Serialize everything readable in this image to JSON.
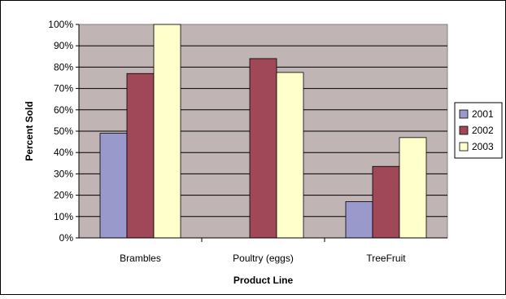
{
  "chart_data": {
    "type": "bar",
    "title": "",
    "xlabel": "Product Line",
    "ylabel": "Percent Sold",
    "categories": [
      "Brambles",
      "Poultry (eggs)",
      "TreeFruit"
    ],
    "series": [
      {
        "name": "2001",
        "values": [
          0.49,
          null,
          0.17
        ],
        "color": "#9999cc"
      },
      {
        "name": "2002",
        "values": [
          0.77,
          0.84,
          0.335
        ],
        "color": "#a04858"
      },
      {
        "name": "2003",
        "values": [
          1.0,
          0.775,
          0.47
        ],
        "color": "#ffffcc"
      }
    ],
    "ylim": [
      0,
      1.0
    ],
    "yticks": [
      0,
      0.1,
      0.2,
      0.3,
      0.4,
      0.5,
      0.6,
      0.7,
      0.8,
      0.9,
      1.0
    ],
    "ytick_labels": [
      "0%",
      "10%",
      "20%",
      "30%",
      "40%",
      "50%",
      "60%",
      "70%",
      "80%",
      "90%",
      "100%"
    ],
    "grid": true,
    "legend_position": "right",
    "plot_background": "#c0b4b4"
  }
}
